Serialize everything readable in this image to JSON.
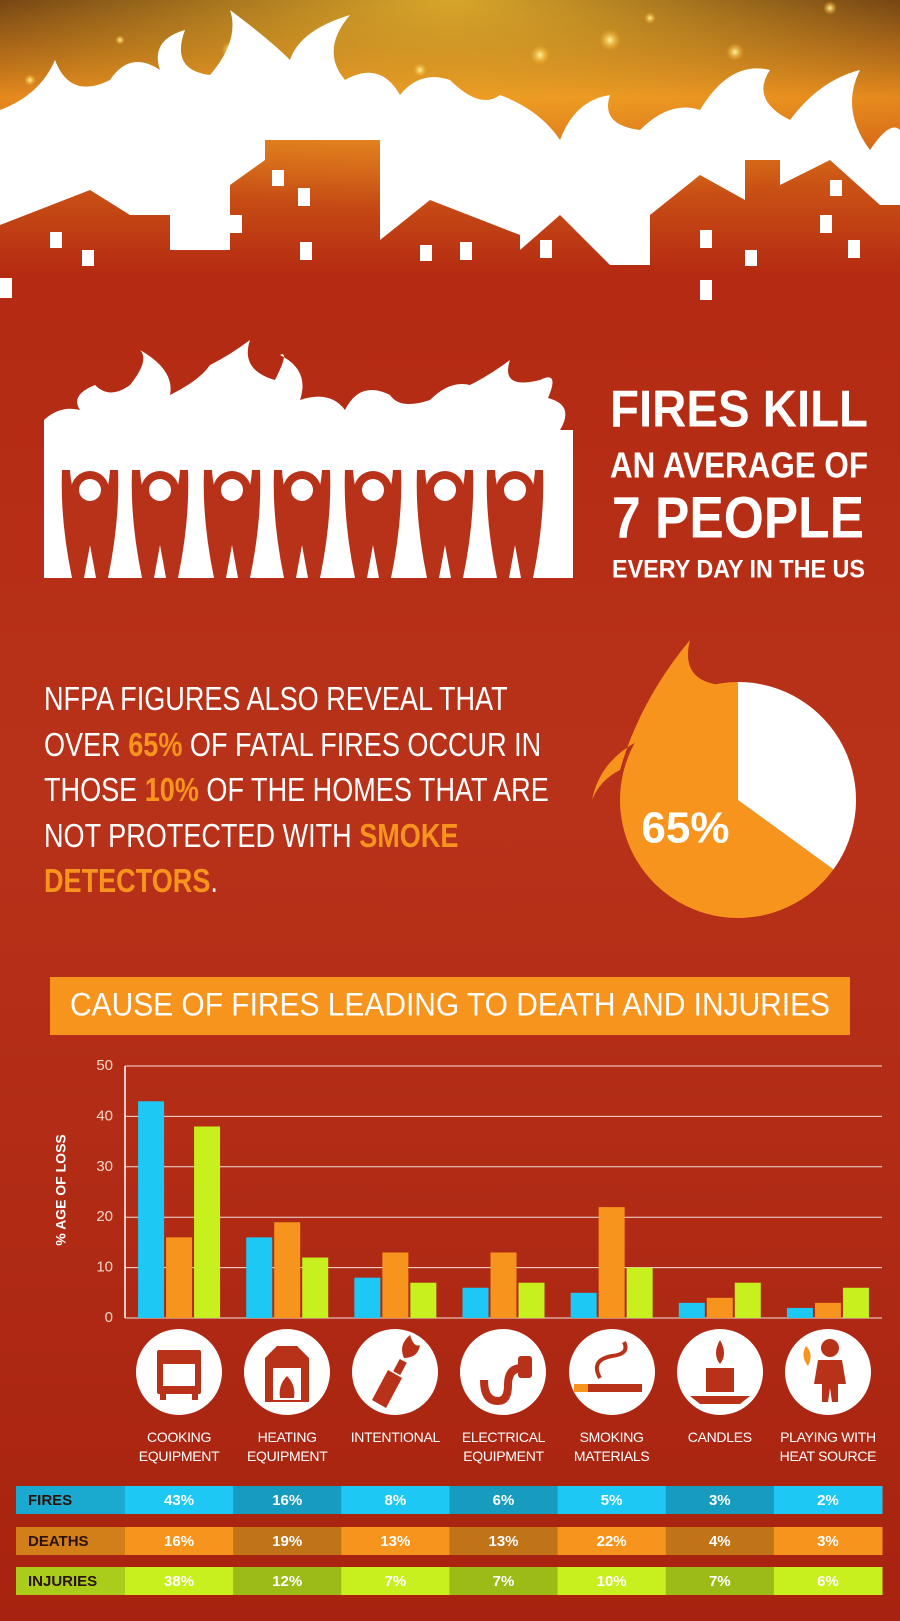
{
  "headline": [
    "FIRES KILL",
    "AN AVERAGE OF",
    "7 PEOPLE",
    "EVERY DAY IN THE US"
  ],
  "statement": [
    {
      "text": "NFPA FIGURES ALSO REVEAL THAT OVER ",
      "emphasis": false
    },
    {
      "text": "65%",
      "emphasis": true
    },
    {
      "text": " OF FATAL FIRES OCCUR IN THOSE ",
      "emphasis": false
    },
    {
      "text": "10%",
      "emphasis": true
    },
    {
      "text": " OF THE HOMES THAT ARE NOT PROTECTED WITH ",
      "emphasis": false
    },
    {
      "text": "SMOKE DETECTORS",
      "emphasis": true
    },
    {
      "text": ".",
      "emphasis": false
    }
  ],
  "emphasis_color": "#f7941d",
  "chart_data": [
    {
      "type": "pie",
      "values": [
        65,
        35
      ],
      "value_labels": [
        "65%",
        null
      ],
      "colors": [
        "#f7941d",
        "#ffffff"
      ]
    },
    {
      "type": "bar",
      "title": "CAUSE OF FIRES LEADING TO DEATH AND INJURIES",
      "y_label": "% AGE OF LOSS",
      "categories": [
        "COOKING EQUIPMENT",
        "HEATING EQUIPMENT",
        "INTENTIONAL",
        "ELECTRICAL EQUIPMENT",
        "SMOKING MATERIALS",
        "CANDLES",
        "PLAYING WITH HEAT SOURCE"
      ],
      "series": [
        {
          "name": "FIRES",
          "color": "#1ec8f5",
          "values": [
            43,
            16,
            8,
            6,
            5,
            3,
            2
          ],
          "value_labels": [
            "43%",
            "16%",
            "8%",
            "6%",
            "5%",
            "3%",
            "2%"
          ]
        },
        {
          "name": "DEATHS",
          "color": "#f7941d",
          "values": [
            16,
            19,
            13,
            13,
            22,
            4,
            3
          ],
          "value_labels": [
            "16%",
            "19%",
            "13%",
            "13%",
            "22%",
            "4%",
            "3%"
          ]
        },
        {
          "name": "INJURIES",
          "color": "#c8f01e",
          "values": [
            38,
            12,
            7,
            7,
            10,
            7,
            6
          ],
          "value_labels": [
            "38%",
            "12%",
            "7%",
            "7%",
            "10%",
            "7%",
            "6%"
          ]
        }
      ],
      "ylim": [
        0,
        50
      ],
      "yticks": [
        0,
        10,
        20,
        30,
        40,
        50
      ],
      "grid": true
    }
  ]
}
